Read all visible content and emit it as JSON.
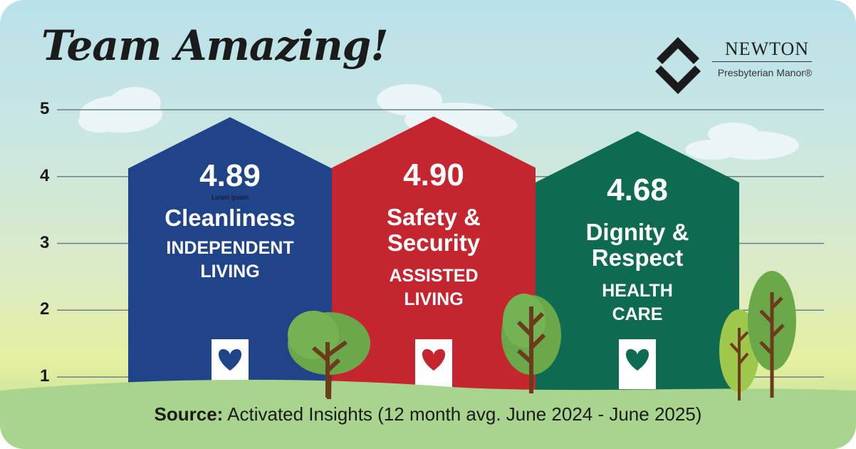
{
  "title": "Team Amazing!",
  "brand": {
    "name": "NEWTON",
    "subtitle": "Presbyterian Manor®"
  },
  "colors": {
    "independent_living": "#1f4489",
    "assisted_living": "#c5252f",
    "health_care": "#0e6b52",
    "grid": "#6e7e86"
  },
  "chart_data": {
    "type": "bar",
    "title": "Team Amazing!",
    "categories": [
      "Cleanliness",
      "Safety & Security",
      "Dignity & Respect"
    ],
    "groups": [
      "INDEPENDENT LIVING",
      "ASSISTED LIVING",
      "HEALTH CARE"
    ],
    "values": [
      4.89,
      4.9,
      4.68
    ],
    "value_labels": [
      "4.89",
      "4.90",
      "4.68"
    ],
    "ylim": [
      1,
      5
    ],
    "yticks": [
      1,
      2,
      3,
      4,
      5
    ],
    "grid": true,
    "annotation": "Lorem ipsum"
  },
  "houses": [
    {
      "value": "4.89",
      "note": "Lorem ipsum",
      "category_lines": [
        "Cleanliness"
      ],
      "group_lines": [
        "INDEPENDENT",
        "LIVING"
      ]
    },
    {
      "value": "4.90",
      "category_lines": [
        "Safety &",
        "Security"
      ],
      "group_lines": [
        "ASSISTED",
        "LIVING"
      ]
    },
    {
      "value": "4.68",
      "category_lines": [
        "Dignity &",
        "Respect"
      ],
      "group_lines": [
        "HEALTH",
        "CARE"
      ]
    }
  ],
  "source": {
    "label": "Source:",
    "text": "Activated Insights (12 month avg. June 2024 - June 2025)"
  }
}
